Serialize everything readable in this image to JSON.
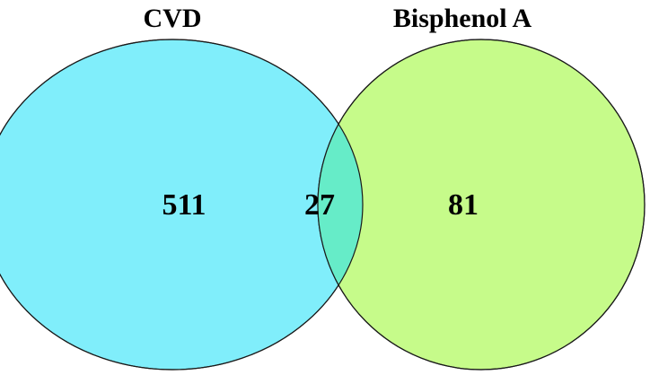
{
  "sets": [
    {
      "id": "cvd",
      "label": "CVD",
      "only_count": "511",
      "color": "#80eefb"
    },
    {
      "id": "bpa",
      "label": "Bisphenol A",
      "only_count": "81",
      "color": "#c6fb8a"
    }
  ],
  "intersection": {
    "count": "27",
    "color": "#66ecc8"
  },
  "outline_color": "#1a1a1a"
}
